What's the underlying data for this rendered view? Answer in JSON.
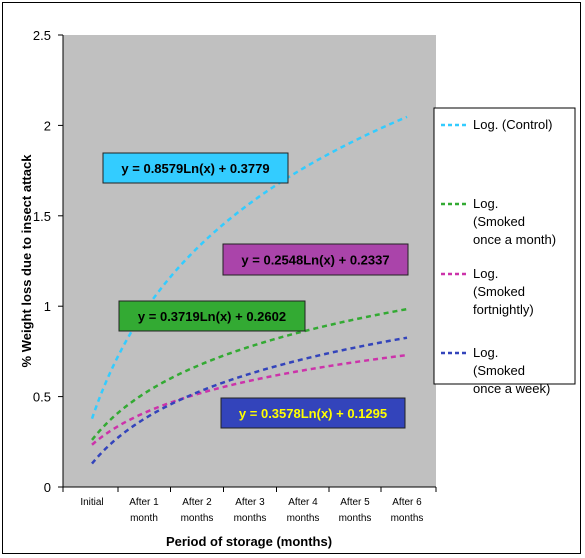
{
  "chart_data": {
    "type": "line",
    "title": "",
    "xlabel": "Period of storage (months)",
    "ylabel": "% Weight loss due to insect attack",
    "ylim": [
      0,
      2.5
    ],
    "yticks": [
      "0",
      "0.5",
      "1",
      "1.5",
      "2",
      "2.5"
    ],
    "categories": [
      [
        "Initial"
      ],
      [
        "After 1",
        "month"
      ],
      [
        "After 2",
        "months"
      ],
      [
        "After 3",
        "months"
      ],
      [
        "After 4",
        "months"
      ],
      [
        "After 5",
        "months"
      ],
      [
        "After 6",
        "months"
      ]
    ],
    "x": [
      1,
      2,
      3,
      4,
      5,
      6,
      7
    ],
    "grid": false,
    "plot_background": "#c0c0c0",
    "legend_position": "right",
    "series": [
      {
        "name": "Log. (Control)",
        "legend_lines": [
          "Log. (Control)"
        ],
        "color": "#33ccff",
        "slope": 0.8579,
        "intercept": 0.3779,
        "values": [
          0.378,
          0.973,
          1.32,
          1.567,
          1.759,
          1.915,
          2.047
        ],
        "equation": "y = 0.8579Ln(x) + 0.3779",
        "label_bg": "#33ccff",
        "label_color": "#000000"
      },
      {
        "name": "Log. (Smoked once a month)",
        "legend_lines": [
          "Log.",
          "(Smoked",
          "once a month)"
        ],
        "color": "#33aa33",
        "slope": 0.3719,
        "intercept": 0.2602,
        "values": [
          0.26,
          0.518,
          0.669,
          0.776,
          0.859,
          0.927,
          0.984
        ],
        "equation": "y = 0.3719Ln(x) + 0.2602",
        "label_bg": "#33aa33",
        "label_color": "#000000"
      },
      {
        "name": "Log. (Smoked fortnightly)",
        "legend_lines": [
          "Log.",
          "(Smoked",
          "fortnightly)"
        ],
        "color": "#cc33aa",
        "slope": 0.2548,
        "intercept": 0.2337,
        "values": [
          0.234,
          0.41,
          0.514,
          0.587,
          0.644,
          0.69,
          0.729
        ],
        "equation": "y = 0.2548Ln(x) + 0.2337",
        "label_bg": "#aa44aa",
        "label_color": "#000000"
      },
      {
        "name": "Log. (Smoked once a week)",
        "legend_lines": [
          "Log.",
          "(Smoked",
          "once a week)"
        ],
        "color": "#3344bb",
        "slope": 0.3578,
        "intercept": 0.1295,
        "values": [
          0.13,
          0.378,
          0.523,
          0.625,
          0.705,
          0.771,
          0.826
        ],
        "equation": "y = 0.3578Ln(x) + 0.1295",
        "label_bg": "#3344bb",
        "label_color": "#ffff00"
      }
    ]
  }
}
